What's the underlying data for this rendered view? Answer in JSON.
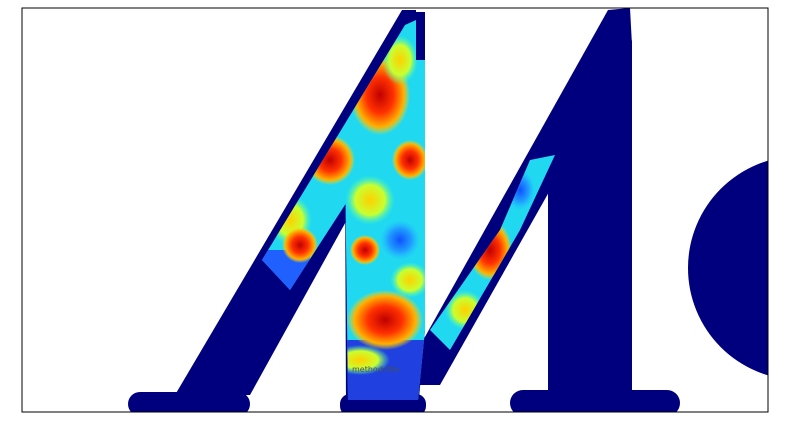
{
  "overlay_text": "methodsfile"
}
